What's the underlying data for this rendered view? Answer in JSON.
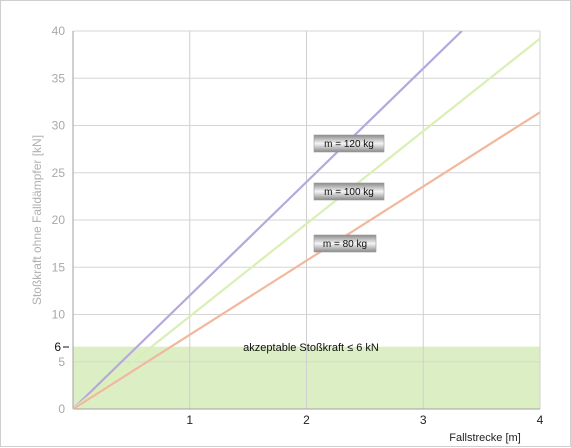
{
  "chart_data": {
    "type": "line",
    "xlabel": "Fallstrecke [m]",
    "ylabel": "Stoßkraft ohne Falldämpfer [kN]",
    "xlim": [
      0,
      4
    ],
    "ylim": [
      0,
      40
    ],
    "x_ticks": [
      "1",
      "2",
      "3",
      "4"
    ],
    "y_ticks": [
      "0",
      "5",
      "10",
      "15",
      "20",
      "25",
      "30",
      "35",
      "40"
    ],
    "grid": true,
    "series": [
      {
        "name": "m = 120 kg",
        "color": "#b4a8dc",
        "x": [
          0,
          3.33
        ],
        "y": [
          0,
          40
        ]
      },
      {
        "name": "m = 100 kg",
        "color": "#d9efb4",
        "x": [
          0,
          4
        ],
        "y": [
          0,
          39.2
        ]
      },
      {
        "name": "m = 80 kg",
        "color": "#f2b89e",
        "x": [
          0,
          4
        ],
        "y": [
          0,
          31.4
        ]
      }
    ],
    "acceptable_zone": {
      "label": "akzeptable Stoßkraft ≤ 6 kN",
      "limit_label": "6",
      "y_max": 6.6,
      "color": "#dcefc4"
    }
  }
}
